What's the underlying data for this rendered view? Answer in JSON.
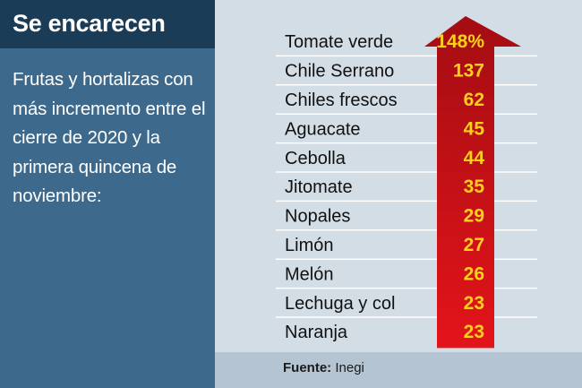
{
  "header": {
    "title": "Se encarecen",
    "subtitle": "Frutas y hortalizas con más incremento entre el cierre de 2020 y la primera quincena de noviembre:"
  },
  "footer": {
    "source_label": "Fuente:",
    "source_value": "Inegi"
  },
  "colors": {
    "title_bg": "#1b3c57",
    "panel_bg": "#3d6a8c",
    "chart_bg": "#d3dde6",
    "arrow_top": "#a30d12",
    "arrow_bottom": "#e3141a",
    "value_text": "#ffd21a"
  },
  "chart_data": {
    "type": "bar",
    "title": "Se encarecen",
    "categories": [
      "Tomate verde",
      "Chile Serrano",
      "Chiles frescos",
      "Aguacate",
      "Cebolla",
      "Jitomate",
      "Nopales",
      "Limón",
      "Melón",
      "Lechuga y col",
      "Naranja"
    ],
    "values": [
      148,
      137,
      62,
      45,
      44,
      35,
      29,
      27,
      26,
      23,
      23
    ],
    "value_labels": [
      "148%",
      "137",
      "62",
      "45",
      "44",
      "35",
      "29",
      "27",
      "26",
      "23",
      "23"
    ],
    "unit": "%"
  }
}
